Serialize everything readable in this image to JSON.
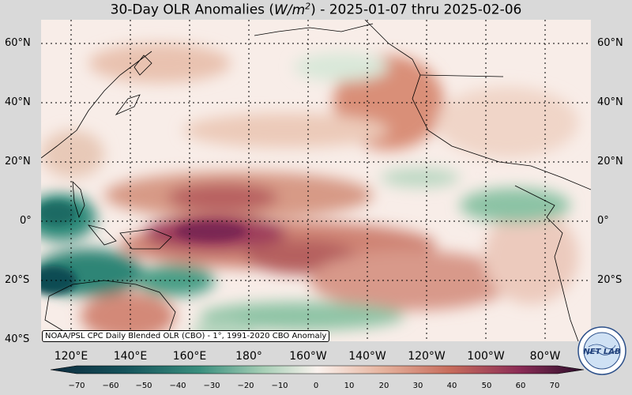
{
  "title_prefix": "30-Day OLR Anomalies (",
  "title_unit_base": "W/m",
  "title_unit_exp": "2",
  "title_suffix": ") - 2025-01-07 thru 2025-02-06",
  "lat_labels": [
    "60°N",
    "40°N",
    "20°N",
    "0°",
    "20°S",
    "40°S"
  ],
  "lon_labels": [
    "120°E",
    "140°E",
    "160°E",
    "180°",
    "160°W",
    "140°W",
    "120°W",
    "100°W",
    "80°W"
  ],
  "credit": "NOAA/PSL CPC Daily Blended OLR (CBO) - 1°, 1991-2020 CBO Anomaly",
  "colorbar_ticks": [
    "−70",
    "−60",
    "−50",
    "−40",
    "−30",
    "−20",
    "−10",
    "0",
    "10",
    "20",
    "30",
    "40",
    "50",
    "60",
    "70"
  ],
  "logo_text": "NET LAB",
  "colors": {
    "strong_negative": "#0d3f4a",
    "negative": "#2e8a78",
    "weak_negative": "#a9d1b8",
    "neutral": "#f7ece7",
    "weak_positive": "#e7b8a2",
    "positive": "#c36d5a",
    "strong_positive": "#6e1f4f"
  }
}
